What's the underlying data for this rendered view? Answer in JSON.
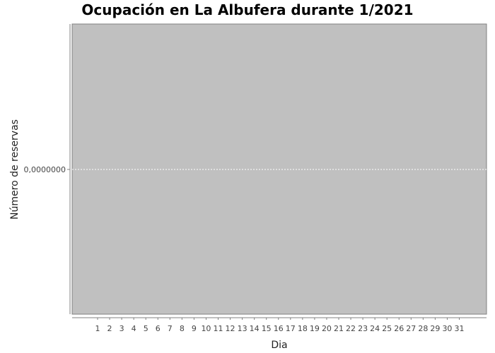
{
  "chart_data": {
    "type": "bar",
    "title": "Ocupación en La Albufera durante 1/2021",
    "xlabel": "Dia",
    "ylabel": "Número de reservas",
    "categories": [
      "1",
      "2",
      "3",
      "4",
      "5",
      "6",
      "7",
      "8",
      "9",
      "10",
      "11",
      "12",
      "13",
      "14",
      "15",
      "16",
      "17",
      "18",
      "19",
      "20",
      "21",
      "22",
      "23",
      "24",
      "25",
      "26",
      "27",
      "28",
      "29",
      "30",
      "31"
    ],
    "series": [
      {
        "values": [
          0,
          0,
          0,
          0,
          0,
          0,
          0,
          0,
          0,
          0,
          0,
          0,
          0,
          0,
          0,
          0,
          0,
          0,
          0,
          0,
          0,
          0,
          0,
          0,
          0,
          0,
          0,
          0,
          0,
          0,
          0
        ]
      }
    ],
    "y_ticks": [
      "0,0000000"
    ],
    "grid": true,
    "colors": {
      "plot_background": "#c0c0c0",
      "gridline": "#ffffff",
      "axis": "#808080"
    }
  }
}
